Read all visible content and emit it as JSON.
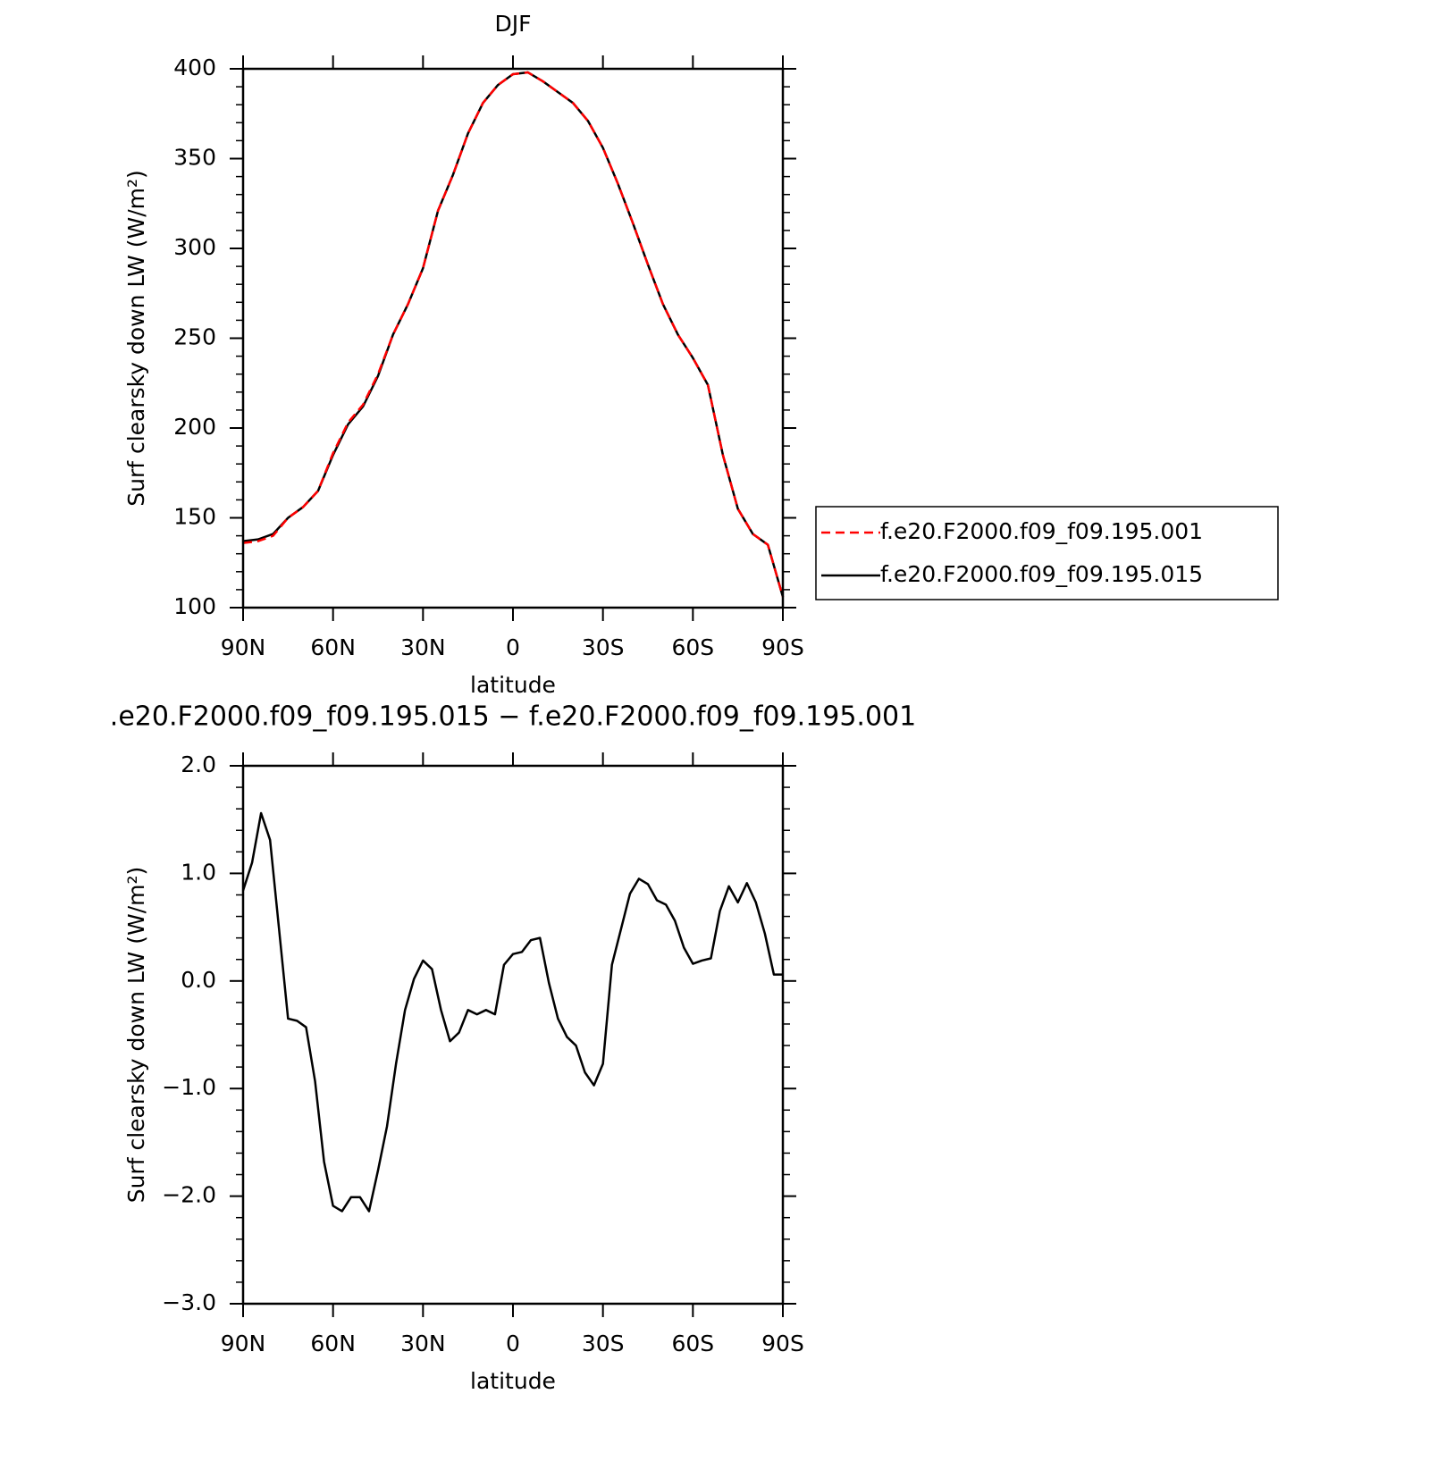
{
  "chart_data": [
    {
      "type": "line",
      "title": "DJF",
      "xlabel": "latitude",
      "ylabel": "Surf clearsky down LW (W/m²)",
      "x": [
        90,
        85,
        80,
        75,
        70,
        65,
        60,
        55,
        50,
        45,
        40,
        35,
        30,
        25,
        20,
        15,
        10,
        5,
        0,
        -5,
        -10,
        -15,
        -20,
        -25,
        -30,
        -35,
        -40,
        -45,
        -50,
        -55,
        -60,
        -65,
        -70,
        -75,
        -80,
        -85,
        -90
      ],
      "series": [
        {
          "name": "f.e20.F2000.f09_f09.195.001",
          "color": "#ff0000",
          "dash": "dashed",
          "values": [
            136,
            137,
            140,
            150,
            156,
            165,
            186,
            203,
            213,
            230,
            252,
            269,
            289,
            321,
            341,
            364,
            381,
            391,
            397,
            398,
            393,
            387,
            381,
            371,
            356,
            336,
            314,
            291,
            269,
            252,
            239,
            224,
            185,
            155,
            141,
            135,
            106
          ]
        },
        {
          "name": "f.e20.F2000.f09_f09.195.015",
          "color": "#000000",
          "dash": "solid",
          "values": [
            137,
            138,
            141,
            150,
            156,
            165,
            185,
            202,
            212,
            229,
            252,
            269,
            289,
            321,
            341,
            364,
            381,
            391,
            397,
            398,
            393,
            387,
            381,
            371,
            356,
            336,
            314,
            291,
            269,
            252,
            239,
            224,
            185,
            155,
            141,
            135,
            106
          ]
        }
      ],
      "xlim": [
        90,
        -90
      ],
      "xticks": [
        {
          "value": 90,
          "label": "90N"
        },
        {
          "value": 60,
          "label": "60N"
        },
        {
          "value": 30,
          "label": "30N"
        },
        0,
        {
          "value": -30,
          "label": "30S"
        },
        {
          "value": -60,
          "label": "60S"
        },
        {
          "value": -90,
          "label": "90S"
        }
      ],
      "ylim": [
        100,
        400
      ],
      "yticks": [
        100,
        150,
        200,
        250,
        300,
        350,
        400
      ],
      "yminorticks": [
        110,
        120,
        130,
        140,
        160,
        170,
        180,
        190,
        210,
        220,
        230,
        240,
        260,
        270,
        280,
        290,
        310,
        320,
        330,
        340,
        360,
        370,
        380,
        390
      ],
      "legend": "outside-right"
    },
    {
      "type": "line",
      "title": ".e20.F2000.f09_f09.195.015 − f.e20.F2000.f09_f09.195.001",
      "xlabel": "latitude",
      "ylabel": "Surf clearsky down LW (W/m²)",
      "x": [
        90,
        87,
        84,
        81,
        78,
        75,
        72,
        69,
        66,
        63,
        60,
        57,
        54,
        51,
        48,
        45,
        42,
        39,
        36,
        33,
        30,
        27,
        24,
        21,
        18,
        15,
        12,
        9,
        6,
        3,
        0,
        -3,
        -6,
        -9,
        -12,
        -15,
        -18,
        -21,
        -24,
        -27,
        -30,
        -33,
        -36,
        -39,
        -42,
        -45,
        -48,
        -51,
        -54,
        -57,
        -60,
        -63,
        -66,
        -69,
        -72,
        -75,
        -78,
        -81,
        -84,
        -87,
        -90
      ],
      "values": [
        0.84,
        1.1,
        1.56,
        1.31,
        0.48,
        -0.35,
        -0.37,
        -0.43,
        -0.93,
        -1.68,
        -2.09,
        -2.14,
        -2.01,
        -2.01,
        -2.14,
        -1.76,
        -1.35,
        -0.77,
        -0.27,
        0.02,
        0.19,
        0.11,
        -0.27,
        -0.56,
        -0.48,
        -0.27,
        -0.31,
        -0.27,
        -0.31,
        0.15,
        0.25,
        0.27,
        0.38,
        0.4,
        -0.02,
        -0.35,
        -0.52,
        -0.6,
        -0.85,
        -0.97,
        -0.77,
        0.15,
        0.48,
        0.81,
        0.95,
        0.9,
        0.75,
        0.71,
        0.56,
        0.31,
        0.16,
        0.19,
        0.21,
        0.65,
        0.88,
        0.73,
        0.91,
        0.73,
        0.44,
        0.06,
        0.06
      ],
      "color": "#000000",
      "xlim": [
        90,
        -90
      ],
      "xticks": [
        {
          "value": 90,
          "label": "90N"
        },
        {
          "value": 60,
          "label": "60N"
        },
        {
          "value": 30,
          "label": "30N"
        },
        0,
        {
          "value": -30,
          "label": "30S"
        },
        {
          "value": -60,
          "label": "60S"
        },
        {
          "value": -90,
          "label": "90S"
        }
      ],
      "ylim": [
        -3,
        2
      ],
      "yticks": [
        {
          "value": -3,
          "label": "−3.0"
        },
        {
          "value": -2,
          "label": "−2.0"
        },
        {
          "value": -1,
          "label": "−1.0"
        },
        {
          "value": 0,
          "label": "0.0"
        },
        {
          "value": 1,
          "label": "1.0"
        },
        {
          "value": 2,
          "label": "2.0"
        }
      ],
      "yminorticks": [
        -2.8,
        -2.6,
        -2.4,
        -2.2,
        -1.8,
        -1.6,
        -1.4,
        -1.2,
        -0.8,
        -0.6,
        -0.4,
        -0.2,
        0.2,
        0.4,
        0.6,
        0.8,
        1.2,
        1.4,
        1.6,
        1.8
      ]
    }
  ]
}
